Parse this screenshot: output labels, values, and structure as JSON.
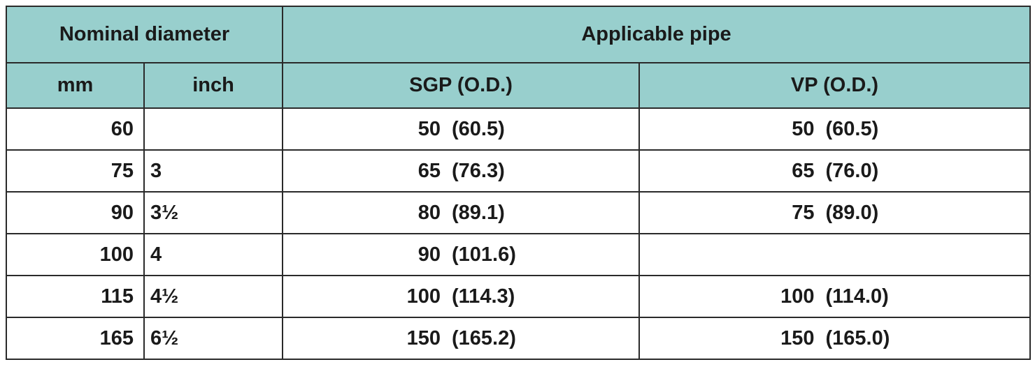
{
  "headers": {
    "nominal_diameter": "Nominal diameter",
    "applicable_pipe": "Applicable pipe",
    "mm": "mm",
    "inch": "inch",
    "sgp": "SGP (O.D.)",
    "vp": "VP (O.D.)"
  },
  "rows": [
    {
      "mm": "60",
      "inch": "",
      "sgp_nom": "50",
      "sgp_od": "(60.5)",
      "vp_nom": "50",
      "vp_od": "(60.5)"
    },
    {
      "mm": "75",
      "inch": "3",
      "sgp_nom": "65",
      "sgp_od": "(76.3)",
      "vp_nom": "65",
      "vp_od": "(76.0)"
    },
    {
      "mm": "90",
      "inch": "3½",
      "sgp_nom": "80",
      "sgp_od": "(89.1)",
      "vp_nom": "75",
      "vp_od": "(89.0)"
    },
    {
      "mm": "100",
      "inch": "4",
      "sgp_nom": "90",
      "sgp_od": "(101.6)",
      "vp_nom": "",
      "vp_od": ""
    },
    {
      "mm": "115",
      "inch": "4½",
      "sgp_nom": "100",
      "sgp_od": "(114.3)",
      "vp_nom": "100",
      "vp_od": "(114.0)"
    },
    {
      "mm": "165",
      "inch": "6½",
      "sgp_nom": "150",
      "sgp_od": "(165.2)",
      "vp_nom": "150",
      "vp_od": "(165.0)"
    }
  ],
  "colors": {
    "header_bg": "#98cfcd",
    "border": "#2a2a2a",
    "text": "#1a1a1a"
  }
}
